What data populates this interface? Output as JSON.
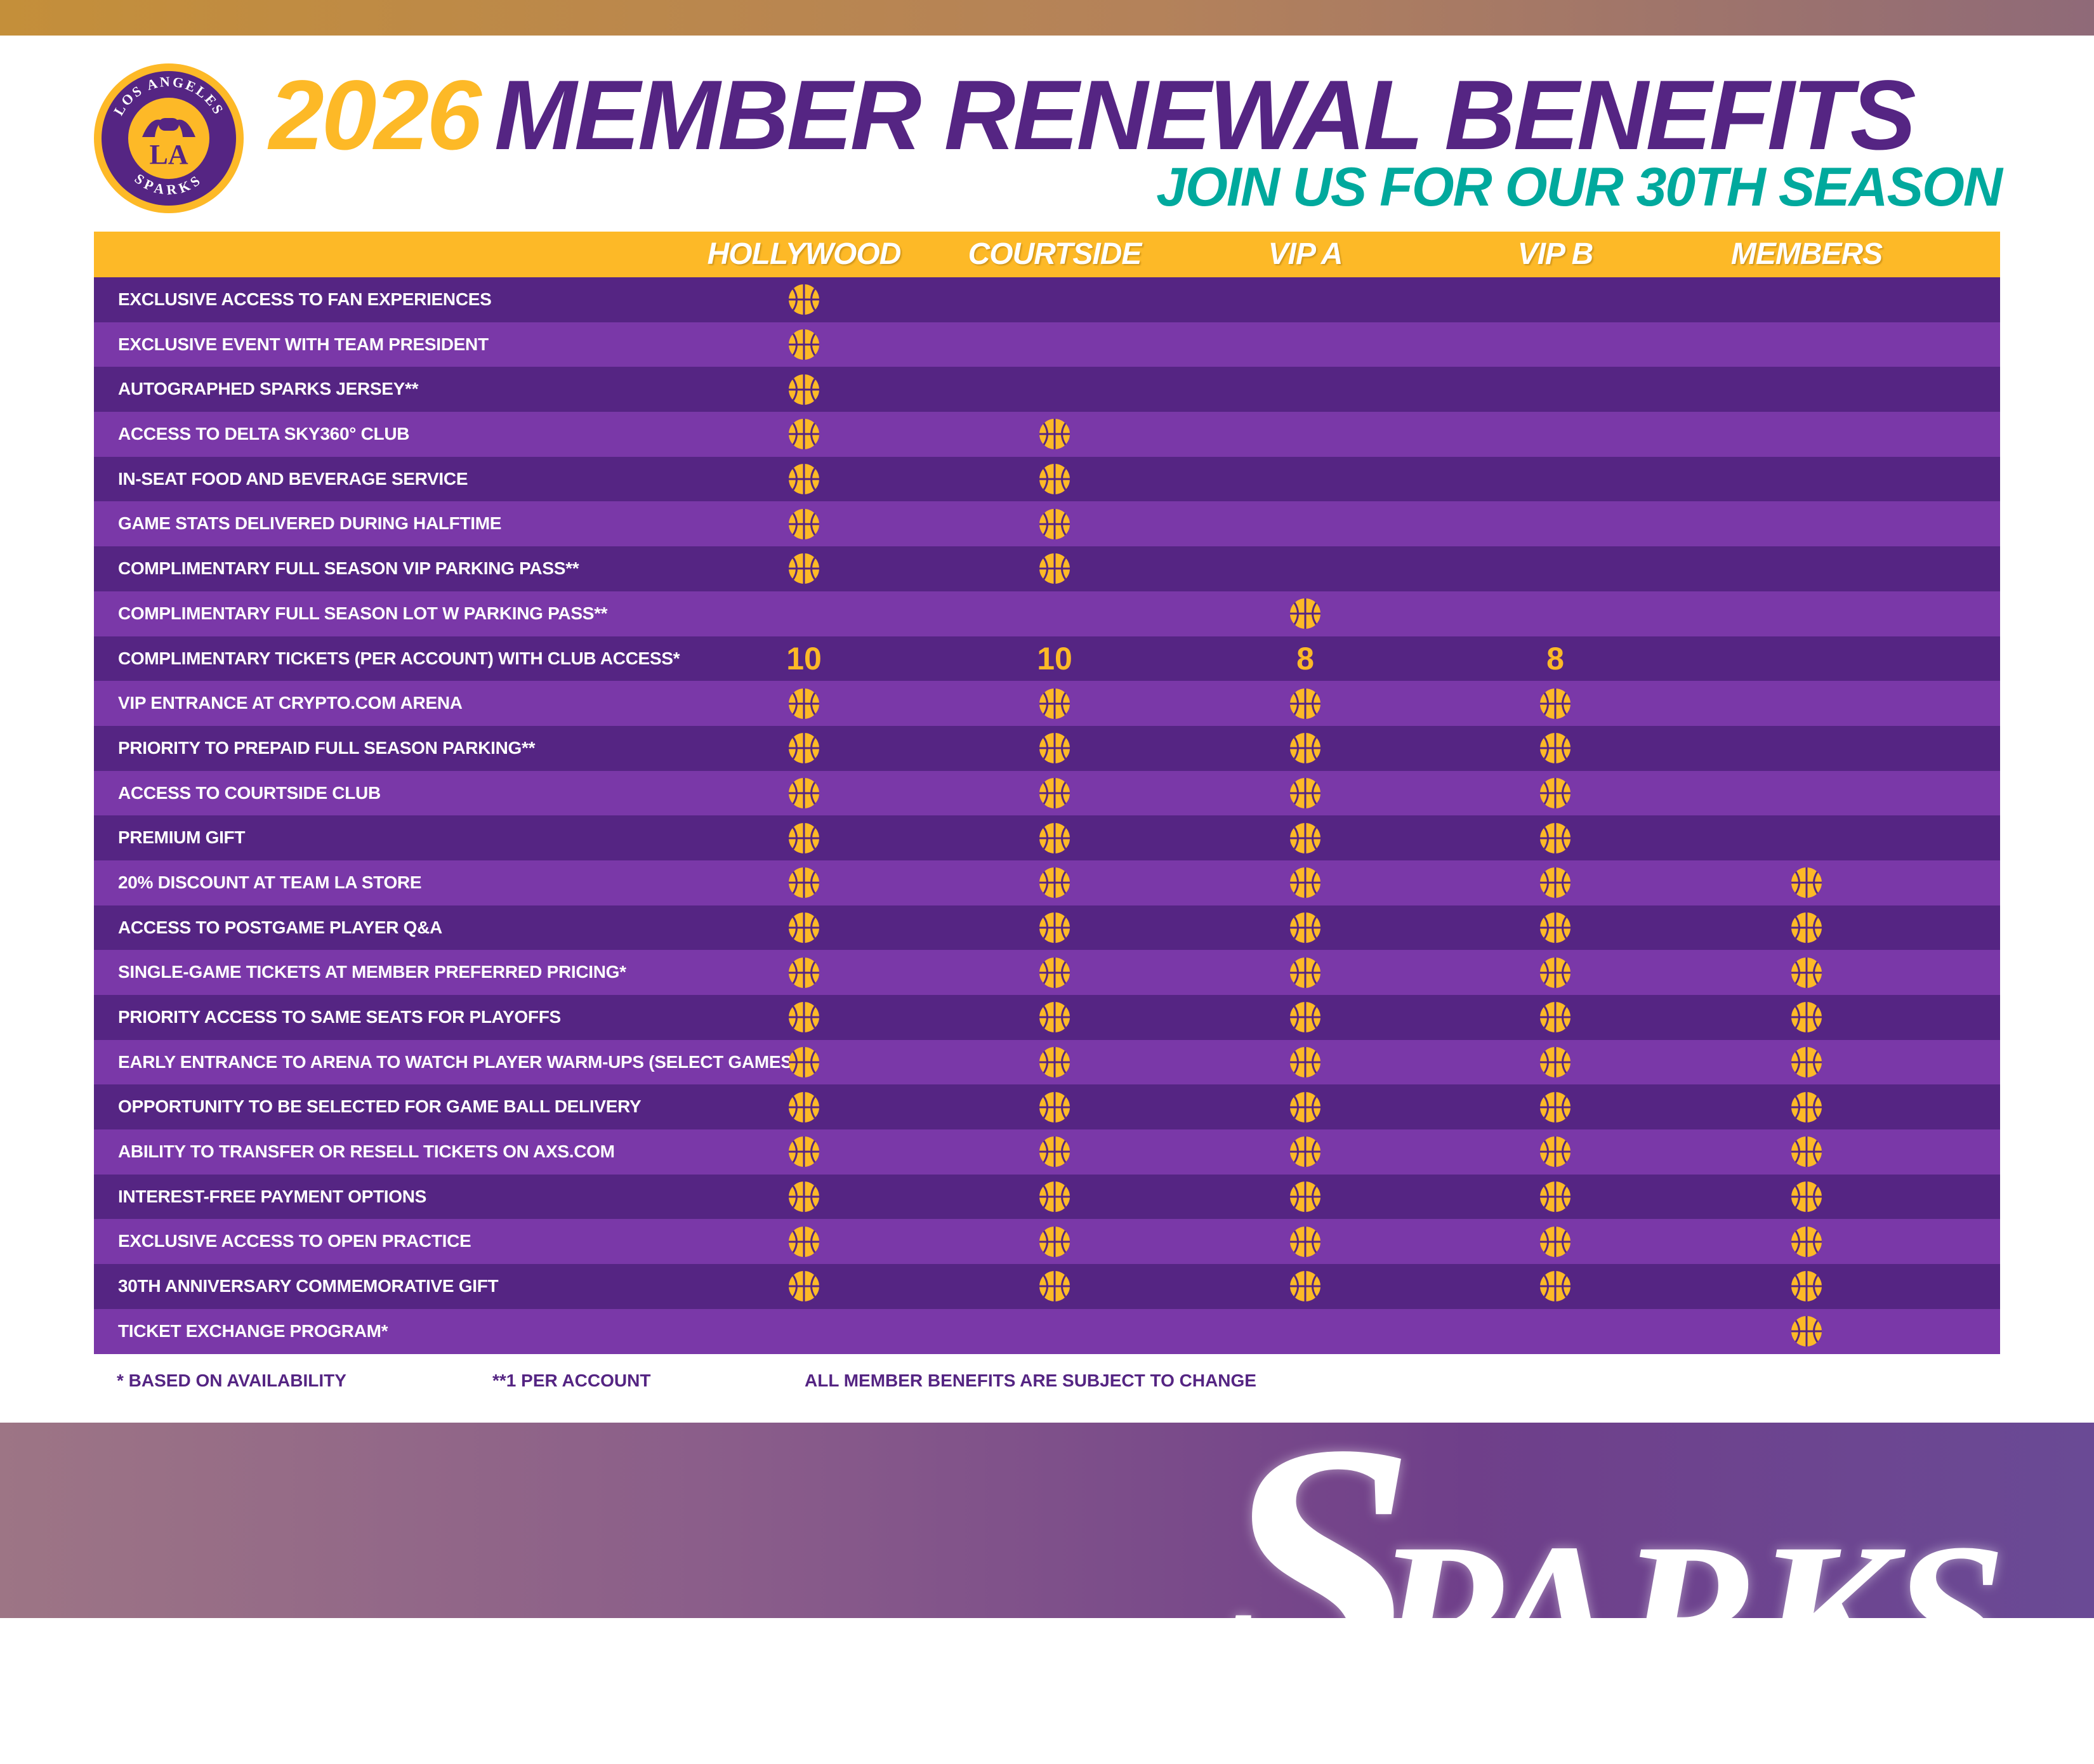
{
  "brand": {
    "logo_top_text": "LOS ANGELES",
    "logo_bottom_text": "SPARKS",
    "logo_center": "LA",
    "wordmark": "SPARKS",
    "colors": {
      "purple": "#552583",
      "purple_alt": "#7a38a8",
      "gold": "#fdb927",
      "teal": "#00a99d"
    }
  },
  "header": {
    "year": "2026",
    "title": "MEMBER RENEWAL BENEFITS",
    "subtitle": "JOIN US FOR OUR 30TH SEASON"
  },
  "table": {
    "columns": [
      "HOLLYWOOD",
      "COURTSIDE",
      "VIP A",
      "VIP B",
      "MEMBERS"
    ],
    "check_icon": "basketball-icon",
    "rows": [
      {
        "label": "EXCLUSIVE ACCESS TO FAN EXPERIENCES",
        "cells": [
          true,
          false,
          false,
          false,
          false
        ]
      },
      {
        "label": "EXCLUSIVE EVENT WITH TEAM PRESIDENT",
        "cells": [
          true,
          false,
          false,
          false,
          false
        ]
      },
      {
        "label": "AUTOGRAPHED SPARKS JERSEY**",
        "cells": [
          true,
          false,
          false,
          false,
          false
        ]
      },
      {
        "label": "ACCESS TO DELTA SKY360° CLUB",
        "cells": [
          true,
          true,
          false,
          false,
          false
        ]
      },
      {
        "label": "IN-SEAT FOOD AND BEVERAGE SERVICE",
        "cells": [
          true,
          true,
          false,
          false,
          false
        ]
      },
      {
        "label": "GAME STATS DELIVERED DURING HALFTIME",
        "cells": [
          true,
          true,
          false,
          false,
          false
        ]
      },
      {
        "label": "COMPLIMENTARY FULL SEASON VIP PARKING PASS**",
        "cells": [
          true,
          true,
          false,
          false,
          false
        ]
      },
      {
        "label": "COMPLIMENTARY FULL SEASON LOT W PARKING PASS**",
        "cells": [
          false,
          false,
          true,
          false,
          false
        ]
      },
      {
        "label": "COMPLIMENTARY TICKETS (PER ACCOUNT) WITH CLUB ACCESS*",
        "cells": [
          "10",
          "10",
          "8",
          "8",
          false
        ]
      },
      {
        "label": "VIP ENTRANCE AT CRYPTO.COM ARENA",
        "cells": [
          true,
          true,
          true,
          true,
          false
        ]
      },
      {
        "label": "PRIORITY TO PREPAID FULL SEASON PARKING**",
        "cells": [
          true,
          true,
          true,
          true,
          false
        ]
      },
      {
        "label": "ACCESS TO COURTSIDE CLUB",
        "cells": [
          true,
          true,
          true,
          true,
          false
        ]
      },
      {
        "label": "PREMIUM GIFT",
        "cells": [
          true,
          true,
          true,
          true,
          false
        ]
      },
      {
        "label": "20% DISCOUNT AT TEAM LA STORE",
        "cells": [
          true,
          true,
          true,
          true,
          true
        ]
      },
      {
        "label": "ACCESS TO POSTGAME PLAYER Q&A",
        "cells": [
          true,
          true,
          true,
          true,
          true
        ]
      },
      {
        "label": "SINGLE-GAME TICKETS AT MEMBER PREFERRED PRICING*",
        "cells": [
          true,
          true,
          true,
          true,
          true
        ]
      },
      {
        "label": "PRIORITY ACCESS TO SAME SEATS FOR PLAYOFFS",
        "cells": [
          true,
          true,
          true,
          true,
          true
        ]
      },
      {
        "label": "EARLY ENTRANCE TO ARENA TO WATCH PLAYER WARM-UPS (SELECT GAMES)",
        "cells": [
          true,
          true,
          true,
          true,
          true
        ]
      },
      {
        "label": "OPPORTUNITY TO BE SELECTED FOR GAME BALL DELIVERY",
        "cells": [
          true,
          true,
          true,
          true,
          true
        ]
      },
      {
        "label": "ABILITY TO TRANSFER OR RESELL TICKETS ON AXS.COM",
        "cells": [
          true,
          true,
          true,
          true,
          true
        ]
      },
      {
        "label": "INTEREST-FREE PAYMENT OPTIONS",
        "cells": [
          true,
          true,
          true,
          true,
          true
        ]
      },
      {
        "label": "EXCLUSIVE ACCESS TO OPEN PRACTICE",
        "cells": [
          true,
          true,
          true,
          true,
          true
        ]
      },
      {
        "label": "30TH ANNIVERSARY COMMEMORATIVE GIFT",
        "cells": [
          true,
          true,
          true,
          true,
          true
        ]
      },
      {
        "label": "TICKET EXCHANGE PROGRAM*",
        "cells": [
          false,
          false,
          false,
          false,
          true
        ]
      }
    ]
  },
  "footnotes": {
    "availability": "* BASED ON AVAILABILITY",
    "per_account": "**1 PER ACCOUNT",
    "subject_to_change": "ALL MEMBER BENEFITS ARE SUBJECT TO CHANGE"
  }
}
